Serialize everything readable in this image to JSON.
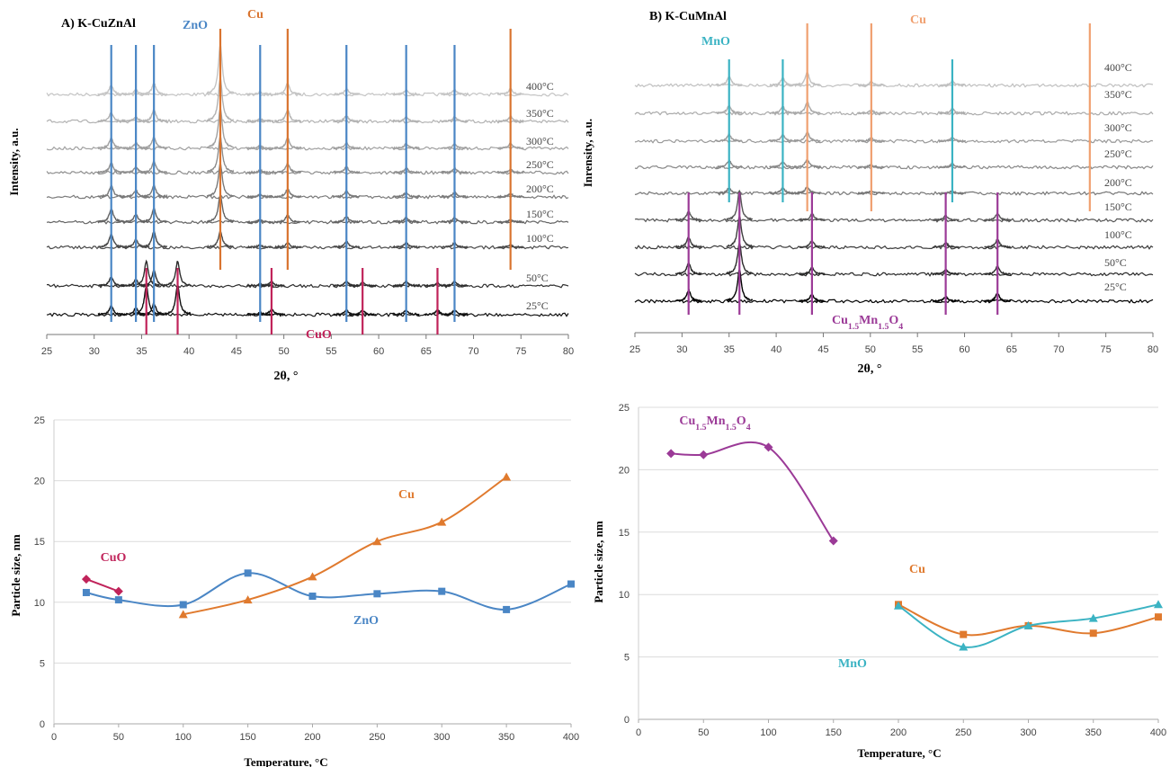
{
  "chart_data": [
    {
      "type": "xrd",
      "title": "A) K-CuZnAl",
      "xlabel": "2θ, °",
      "ylabel": "Intensity, a.u.",
      "xlim": [
        25,
        80
      ],
      "xticks": [
        25,
        30,
        35,
        40,
        45,
        50,
        55,
        60,
        65,
        70,
        75,
        80
      ],
      "reference_lines": [
        {
          "name": "ZnO",
          "color": "#4a86c5",
          "positions": [
            31.8,
            34.4,
            36.3,
            47.5,
            56.6,
            62.9,
            68.0
          ]
        },
        {
          "name": "Cu",
          "color": "#d9742f",
          "positions": [
            43.3,
            50.4,
            73.9
          ]
        },
        {
          "name": "CuO",
          "color": "#c0235a",
          "positions": [
            35.5,
            38.8,
            48.7,
            58.3,
            66.2
          ]
        }
      ],
      "series": [
        {
          "name": "400°C",
          "color": "#c4c4c4",
          "peak_x": [
            31.8,
            34.4,
            36.3,
            43.3,
            47.5,
            50.4,
            56.6,
            62.9,
            68.0,
            73.9
          ],
          "peak_height": [
            0.4,
            0.2,
            0.5,
            2.2,
            0.1,
            0.5,
            0.25,
            0.2,
            0.2,
            0.25
          ]
        },
        {
          "name": "350°C",
          "color": "#b2b2b2",
          "peak_x": [
            31.8,
            34.4,
            36.3,
            43.3,
            47.5,
            50.4,
            56.6,
            62.9,
            68.0,
            73.9
          ],
          "peak_height": [
            0.4,
            0.2,
            0.5,
            1.9,
            0.1,
            0.5,
            0.25,
            0.2,
            0.2,
            0.2
          ]
        },
        {
          "name": "300°C",
          "color": "#a0a0a0",
          "peak_x": [
            31.8,
            34.4,
            36.3,
            43.3,
            47.5,
            50.4,
            56.6,
            62.9,
            68.0,
            73.9
          ],
          "peak_height": [
            0.45,
            0.25,
            0.5,
            1.8,
            0.1,
            0.45,
            0.25,
            0.2,
            0.2,
            0.2
          ]
        },
        {
          "name": "250°C",
          "color": "#8e8e8e",
          "peak_x": [
            31.8,
            34.4,
            36.3,
            43.3,
            47.5,
            50.4,
            56.6,
            62.9,
            68.0,
            73.9
          ],
          "peak_height": [
            0.45,
            0.25,
            0.5,
            1.6,
            0.1,
            0.4,
            0.25,
            0.2,
            0.2,
            0.15
          ]
        },
        {
          "name": "200°C",
          "color": "#7a7a7a",
          "peak_x": [
            31.8,
            34.4,
            36.3,
            43.3,
            47.5,
            50.4,
            56.6,
            62.9,
            68.0,
            73.9
          ],
          "peak_height": [
            0.5,
            0.3,
            0.5,
            1.5,
            0.1,
            0.35,
            0.25,
            0.2,
            0.2,
            0.15
          ]
        },
        {
          "name": "150°C",
          "color": "#646464",
          "peak_x": [
            31.8,
            34.4,
            36.3,
            43.3,
            47.5,
            50.4,
            56.6,
            62.9,
            68.0,
            73.9
          ],
          "peak_height": [
            0.6,
            0.35,
            0.6,
            1.2,
            0.1,
            0.3,
            0.25,
            0.2,
            0.2,
            0.1
          ]
        },
        {
          "name": "100°C",
          "color": "#4a4a4a",
          "peak_x": [
            31.8,
            34.4,
            36.3,
            43.3,
            47.5,
            50.4,
            56.6,
            62.9,
            68.0,
            73.9
          ],
          "peak_height": [
            0.6,
            0.35,
            0.7,
            0.7,
            0.1,
            0.2,
            0.25,
            0.2,
            0.2,
            0.1
          ]
        },
        {
          "name": "50°C",
          "color": "#2e2e2e",
          "peak_x": [
            31.8,
            34.4,
            35.5,
            36.3,
            38.8,
            47.5,
            48.7,
            56.6,
            58.3,
            62.9,
            66.2,
            68.0
          ],
          "peak_height": [
            0.4,
            0.3,
            1.1,
            0.7,
            1.1,
            0.1,
            0.2,
            0.2,
            0.15,
            0.2,
            0.15,
            0.2
          ]
        },
        {
          "name": "25°C",
          "color": "#111111",
          "peak_x": [
            31.8,
            34.4,
            35.5,
            36.3,
            38.8,
            47.5,
            48.7,
            56.6,
            58.3,
            62.9,
            66.2,
            68.0
          ],
          "peak_height": [
            0.4,
            0.3,
            1.3,
            0.5,
            1.3,
            0.1,
            0.25,
            0.2,
            0.2,
            0.2,
            0.2,
            0.2
          ]
        }
      ]
    },
    {
      "type": "xrd",
      "title": "B) K-CuMnAl",
      "xlabel": "2θ, °",
      "ylabel": "Inrensity, a.u.",
      "xlim": [
        25,
        80
      ],
      "xticks": [
        25,
        30,
        35,
        40,
        45,
        50,
        55,
        60,
        65,
        70,
        75,
        80
      ],
      "reference_lines": [
        {
          "name": "MnO",
          "color": "#3bb3c3",
          "positions": [
            35.0,
            40.7,
            58.7
          ]
        },
        {
          "name": "Cu",
          "color": "#f0a070",
          "positions": [
            43.3,
            50.1,
            73.3
          ]
        },
        {
          "name": "Cu1.5Mn1.5O4",
          "color": "#9b3a97",
          "positions": [
            30.7,
            36.1,
            43.8,
            58.0,
            63.5
          ]
        }
      ],
      "series": [
        {
          "name": "400°C",
          "color": "#c0c0c0",
          "peak_x": [
            35.0,
            40.7,
            43.3,
            50.1,
            58.7
          ],
          "peak_height": [
            0.4,
            0.35,
            0.6,
            0.15,
            0.2
          ]
        },
        {
          "name": "350°C",
          "color": "#aaaaaa",
          "peak_x": [
            35.0,
            40.7,
            43.3,
            50.1,
            58.7
          ],
          "peak_height": [
            0.35,
            0.3,
            0.5,
            0.15,
            0.2
          ]
        },
        {
          "name": "300°C",
          "color": "#999999",
          "peak_x": [
            35.0,
            40.7,
            43.3,
            50.1,
            58.7
          ],
          "peak_height": [
            0.3,
            0.3,
            0.4,
            0.15,
            0.15
          ]
        },
        {
          "name": "250°C",
          "color": "#888888",
          "peak_x": [
            35.0,
            40.7,
            43.3,
            50.1,
            58.7
          ],
          "peak_height": [
            0.3,
            0.25,
            0.35,
            0.1,
            0.15
          ]
        },
        {
          "name": "200°C",
          "color": "#777777",
          "peak_x": [
            35.0,
            40.7,
            43.3,
            50.1,
            58.7
          ],
          "peak_height": [
            0.25,
            0.25,
            0.3,
            0.1,
            0.1
          ]
        },
        {
          "name": "150°C",
          "color": "#555555",
          "peak_x": [
            30.7,
            36.1,
            43.8,
            58.0,
            63.5
          ],
          "peak_height": [
            0.4,
            1.3,
            0.3,
            0.2,
            0.3
          ]
        },
        {
          "name": "100°C",
          "color": "#3c3c3c",
          "peak_x": [
            30.7,
            36.1,
            43.8,
            58.0,
            63.5
          ],
          "peak_height": [
            0.45,
            1.4,
            0.3,
            0.2,
            0.35
          ]
        },
        {
          "name": "50°C",
          "color": "#2a2a2a",
          "peak_x": [
            30.7,
            36.1,
            43.8,
            58.0,
            63.5
          ],
          "peak_height": [
            0.5,
            1.4,
            0.3,
            0.2,
            0.35
          ]
        },
        {
          "name": "25°C",
          "color": "#000000",
          "peak_x": [
            30.7,
            36.1,
            43.8,
            58.0,
            63.5
          ],
          "peak_height": [
            0.5,
            1.4,
            0.3,
            0.2,
            0.35
          ]
        }
      ]
    },
    {
      "type": "line",
      "xlabel": "Temperature, °C",
      "ylabel": "Particle size, nm",
      "xlim": [
        0,
        400
      ],
      "xticks": [
        0,
        50,
        100,
        150,
        200,
        250,
        300,
        350,
        400
      ],
      "ylim": [
        0,
        25
      ],
      "yticks": [
        0,
        5,
        10,
        15,
        20,
        25
      ],
      "grid": true,
      "series": [
        {
          "name": "CuO",
          "color": "#c0235a",
          "marker": "diamond",
          "x": [
            25,
            50
          ],
          "values": [
            11.9,
            10.9
          ]
        },
        {
          "name": "ZnO",
          "color": "#4a86c5",
          "marker": "square",
          "x": [
            25,
            50,
            100,
            150,
            200,
            250,
            300,
            350,
            400
          ],
          "values": [
            10.8,
            10.2,
            9.8,
            12.4,
            10.5,
            10.7,
            10.9,
            9.4,
            11.5
          ]
        },
        {
          "name": "Cu",
          "color": "#e07a2e",
          "marker": "triangle",
          "x": [
            100,
            150,
            200,
            250,
            300,
            350
          ],
          "values": [
            9.0,
            10.2,
            12.1,
            15.0,
            16.6,
            20.3
          ]
        }
      ]
    },
    {
      "type": "line",
      "xlabel": "Temperature, °C",
      "ylabel": "Particle size, nm",
      "xlim": [
        0,
        400
      ],
      "xticks": [
        0,
        50,
        100,
        150,
        200,
        250,
        300,
        350,
        400
      ],
      "ylim": [
        0,
        25
      ],
      "yticks": [
        0,
        5,
        10,
        15,
        20,
        25
      ],
      "grid": true,
      "series": [
        {
          "name": "Cu1.5Mn1.5O4",
          "color": "#9b3a97",
          "marker": "diamond",
          "x": [
            25,
            50,
            100,
            150
          ],
          "values": [
            21.3,
            21.2,
            21.8,
            14.3
          ]
        },
        {
          "name": "Cu",
          "color": "#e07a2e",
          "marker": "square",
          "x": [
            200,
            250,
            300,
            350,
            400
          ],
          "values": [
            9.2,
            6.8,
            7.5,
            6.9,
            8.2
          ]
        },
        {
          "name": "MnO",
          "color": "#3bb3c3",
          "marker": "triangle",
          "x": [
            200,
            250,
            300,
            350,
            400
          ],
          "values": [
            9.1,
            5.8,
            7.5,
            8.1,
            9.2
          ]
        }
      ]
    }
  ]
}
